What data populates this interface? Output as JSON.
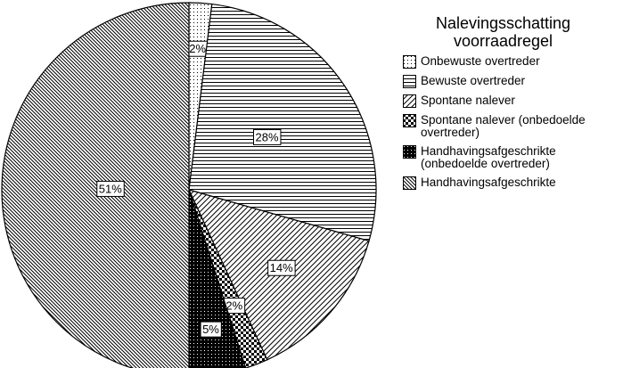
{
  "chart_data": {
    "type": "pie",
    "legend_title": "Nalevingsschatting voorraadregel",
    "categories": [
      "Onbewuste overtreder",
      "Bewuste overtreder",
      "Spontane nalever",
      "Spontane nalever (onbedoelde overtreder)",
      "Handhavingsafgeschrikte (onbedoelde overtreder)",
      "Handhavingsafgeschrikte"
    ],
    "values": [
      2,
      28,
      14,
      2,
      5,
      51
    ],
    "value_labels": [
      "2%",
      "28%",
      "14%",
      "2%",
      "5%",
      "51%"
    ],
    "patterns": [
      "dots",
      "horizontal",
      "diagonal",
      "checker",
      "black-dots",
      "dense-diagonal"
    ],
    "legend": "right"
  }
}
